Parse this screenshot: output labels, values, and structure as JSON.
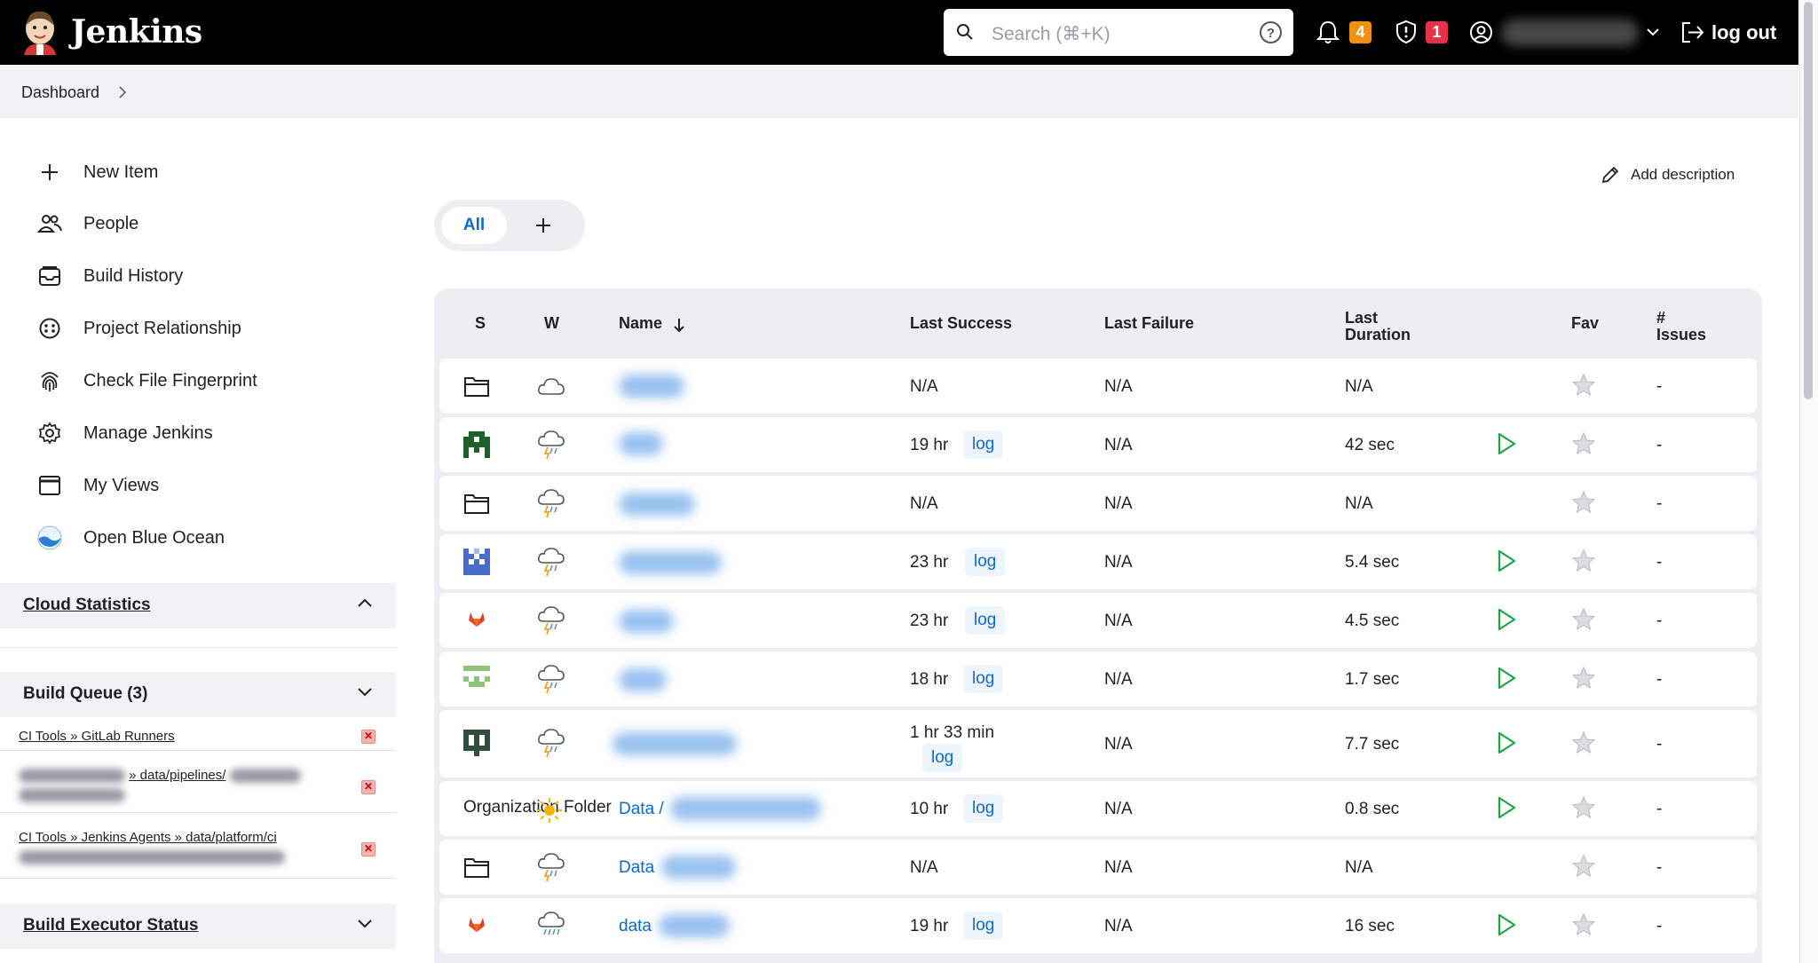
{
  "header": {
    "app_title": "Jenkins",
    "search_placeholder": "Search (⌘+K)",
    "notifications_count": "4",
    "security_count": "1",
    "logout_label": "log out"
  },
  "breadcrumb": {
    "item": "Dashboard"
  },
  "sidebar": {
    "tasks": [
      {
        "label": "New Item",
        "icon": "plus-icon"
      },
      {
        "label": "People",
        "icon": "people-icon"
      },
      {
        "label": "Build History",
        "icon": "build-history-icon"
      },
      {
        "label": "Project Relationship",
        "icon": "relationship-icon"
      },
      {
        "label": "Check File Fingerprint",
        "icon": "fingerprint-icon"
      },
      {
        "label": "Manage Jenkins",
        "icon": "gear-icon"
      },
      {
        "label": "My Views",
        "icon": "window-icon"
      },
      {
        "label": "Open Blue Ocean",
        "icon": "blue-ocean-icon"
      }
    ],
    "cloud_statistics": "Cloud Statistics",
    "build_queue": {
      "title": "Build Queue (3)",
      "items": [
        {
          "text": "CI Tools » GitLab Runners"
        },
        {
          "text": "» data/pipelines/"
        },
        {
          "text": "CI Tools » Jenkins Agents » data/platform/ci"
        }
      ]
    },
    "executor_status": "Build Executor Status"
  },
  "main": {
    "add_description": "Add description",
    "tabs": {
      "all": "All"
    },
    "columns": {
      "s": "S",
      "w": "W",
      "name": "Name",
      "last_success": "Last Success",
      "last_failure": "Last Failure",
      "last_duration": "Last Duration",
      "fav": "Fav",
      "issues": "# Issues"
    },
    "rows": [
      {
        "status": "folder-icon",
        "weather": "cloud-icon",
        "last_success": "N/A",
        "log": false,
        "last_failure": "N/A",
        "duration": "N/A",
        "run": false,
        "issues": "-"
      },
      {
        "status": "pixel-avatar-green-icon",
        "weather": "storm-icon",
        "last_success": "19 hr",
        "log": true,
        "last_failure": "N/A",
        "duration": "42 sec",
        "run": true,
        "issues": "-"
      },
      {
        "status": "folder-icon",
        "weather": "storm-icon",
        "last_success": "N/A",
        "log": false,
        "last_failure": "N/A",
        "duration": "N/A",
        "run": false,
        "issues": "-"
      },
      {
        "status": "pixel-avatar-blue-icon",
        "weather": "storm-icon",
        "last_success": "23 hr",
        "log": true,
        "last_failure": "N/A",
        "duration": "5.4 sec",
        "run": true,
        "issues": "-"
      },
      {
        "status": "gitlab-icon",
        "weather": "storm-icon",
        "last_success": "23 hr",
        "log": true,
        "last_failure": "N/A",
        "duration": "4.5 sec",
        "run": true,
        "issues": "-"
      },
      {
        "status": "pixel-avatar-lightgreen-icon",
        "weather": "storm-icon",
        "last_success": "18 hr",
        "log": true,
        "last_failure": "N/A",
        "duration": "1.7 sec",
        "run": true,
        "issues": "-"
      },
      {
        "status": "pixel-avatar-darkgreen-icon",
        "weather": "storm-icon",
        "last_success": "1 hr 33 min",
        "log": true,
        "last_failure": "N/A",
        "duration": "7.7 sec",
        "run": true,
        "issues": "-"
      },
      {
        "status": "Organization Folder",
        "weather": "sun-icon",
        "name_prefix": "Data /",
        "last_success": "10 hr",
        "log": true,
        "last_failure": "N/A",
        "duration": "0.8 sec",
        "run": true,
        "issues": "-"
      },
      {
        "status": "folder-icon",
        "weather": "storm-icon",
        "name_prefix": "Data",
        "last_success": "N/A",
        "log": false,
        "last_failure": "N/A",
        "duration": "N/A",
        "run": false,
        "issues": "-"
      },
      {
        "status": "gitlab-icon",
        "weather": "rain-icon",
        "name_prefix": "data",
        "last_success": "19 hr",
        "log": true,
        "last_failure": "N/A",
        "duration": "16 sec",
        "run": true,
        "issues": "-"
      }
    ],
    "log_label": "log"
  },
  "colors": {
    "accent": "#0b6bcb",
    "run_green": "#1ea446",
    "badge_orange": "#f09013",
    "badge_red": "#e8304a"
  }
}
